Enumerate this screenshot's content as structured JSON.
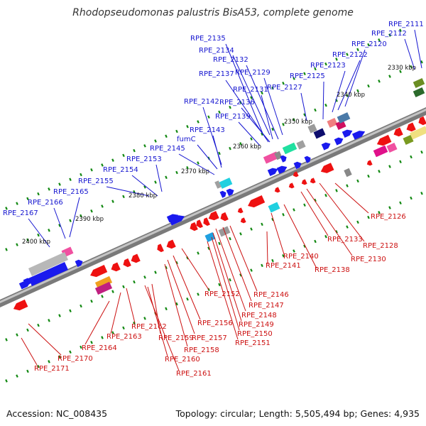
{
  "title": "Rhodopseudomonas palustris BisA53, complete genome",
  "footer": {
    "accession": "Accession: NC_008435",
    "stats": "Topology: circular; Length: 5,505,494 bp; Genes: 4,935"
  },
  "colors": {
    "forward_label": "#1515d0",
    "reverse_label": "#cc1010",
    "forward_gene": "#1a1aee",
    "reverse_gene": "#ee1111",
    "tick": "#118811",
    "backbone": "#9a9a9a"
  },
  "scale_labels": [
    "2330 kbp",
    "2340 kbp",
    "2350 kbp",
    "2360 kbp",
    "2370 kbp",
    "2380 kbp",
    "2390 kbp",
    "2400 kbp"
  ],
  "forward_genes": [
    "RPE_2111",
    "RPE_2112",
    "RPE_2120",
    "RPE_2122",
    "RPE_2123",
    "RPE_2125",
    "RPE_2127",
    "RPE_2129",
    "RPE_2131",
    "RPE_2132",
    "RPE_2134",
    "RPE_2135",
    "RPE_2136",
    "RPE_2137",
    "RPE_2139",
    "RPE_2142",
    "RPE_2143",
    "fumC",
    "RPE_2145",
    "RPE_2153",
    "RPE_2154",
    "RPE_2155",
    "RPE_2165",
    "RPE_2166",
    "RPE_2167"
  ],
  "reverse_genes": [
    "RPE_2126",
    "RPE_2128",
    "RPE_2130",
    "RPE_2133",
    "RPE_2138",
    "RPE_2140",
    "RPE_2141",
    "RPE_2146",
    "RPE_2147",
    "RPE_2148",
    "RPE_2149",
    "RPE_2150",
    "RPE_2151",
    "RPE_2152",
    "RPE_2156",
    "RPE_2157",
    "RPE_2158",
    "RPE_2159",
    "RPE_2160",
    "RPE_2161",
    "RPE_2162",
    "RPE_2163",
    "RPE_2164",
    "RPE_2170",
    "RPE_2171"
  ]
}
